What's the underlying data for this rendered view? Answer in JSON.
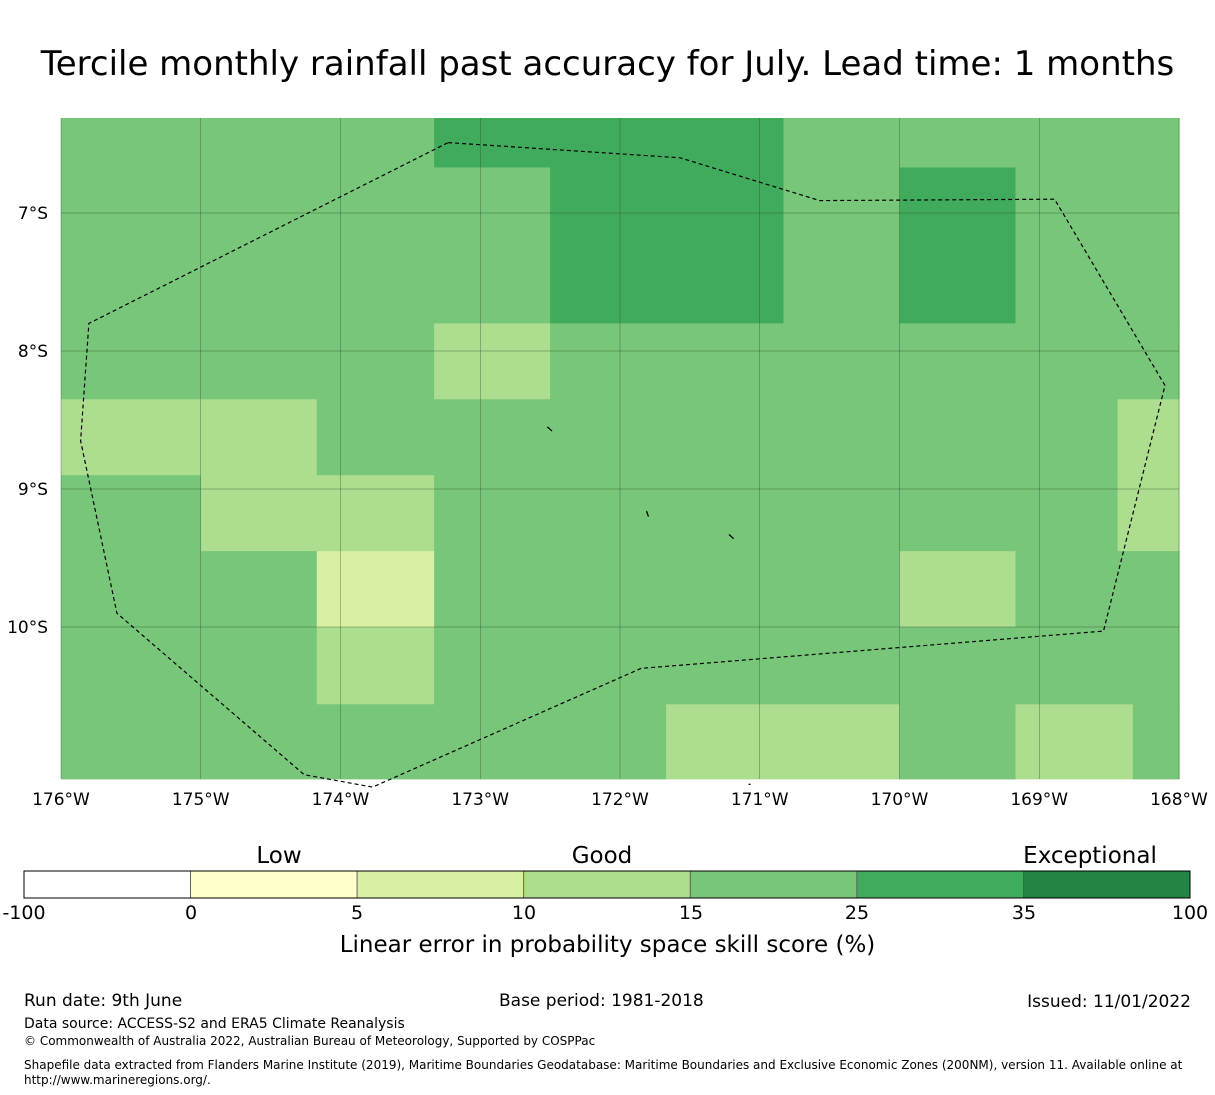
{
  "title": "Tercile monthly rainfall past accuracy for July. Lead time: 1 months",
  "map": {
    "lon_range": [
      -176,
      -168
    ],
    "lat_range": [
      -11.2,
      -6.3
    ],
    "x_ticks": [
      "176°W",
      "175°W",
      "174°W",
      "173°W",
      "172°W",
      "171°W",
      "170°W",
      "169°W",
      "168°W"
    ],
    "y_ticks": [
      "7°S",
      "8°S",
      "9°S",
      "10°S"
    ],
    "cells": [
      {
        "lon": [
          -176.0,
          -173.33
        ],
        "lat": [
          -8.35,
          -6.3
        ],
        "cls": "15-25"
      },
      {
        "lon": [
          -173.33,
          -172.5
        ],
        "lat": [
          -6.67,
          -6.3
        ],
        "cls": "25-35"
      },
      {
        "lon": [
          -173.33,
          -172.5
        ],
        "lat": [
          -7.8,
          -6.67
        ],
        "cls": "15-25"
      },
      {
        "lon": [
          -173.33,
          -172.5
        ],
        "lat": [
          -8.35,
          -7.8
        ],
        "cls": "10-15"
      },
      {
        "lon": [
          -172.5,
          -170.83
        ],
        "lat": [
          -7.8,
          -6.3
        ],
        "cls": "25-35"
      },
      {
        "lon": [
          -170.83,
          -170.0
        ],
        "lat": [
          -7.8,
          -6.3
        ],
        "cls": "15-25"
      },
      {
        "lon": [
          -170.0,
          -169.17
        ],
        "lat": [
          -6.67,
          -6.3
        ],
        "cls": "15-25"
      },
      {
        "lon": [
          -170.0,
          -169.17
        ],
        "lat": [
          -7.8,
          -6.67
        ],
        "cls": "25-35"
      },
      {
        "lon": [
          -169.17,
          -168.0
        ],
        "lat": [
          -7.8,
          -6.3
        ],
        "cls": "15-25"
      },
      {
        "lon": [
          -172.5,
          -168.0
        ],
        "lat": [
          -8.35,
          -7.8
        ],
        "cls": "15-25"
      },
      {
        "lon": [
          -176.0,
          -175.0
        ],
        "lat": [
          -8.9,
          -8.35
        ],
        "cls": "10-15"
      },
      {
        "lon": [
          -175.0,
          -174.17
        ],
        "lat": [
          -8.9,
          -8.35
        ],
        "cls": "10-15"
      },
      {
        "lon": [
          -174.17,
          -168.44
        ],
        "lat": [
          -8.9,
          -8.35
        ],
        "cls": "15-25"
      },
      {
        "lon": [
          -168.44,
          -168.0
        ],
        "lat": [
          -8.9,
          -8.35
        ],
        "cls": "10-15"
      },
      {
        "lon": [
          -176.0,
          -175.0
        ],
        "lat": [
          -9.45,
          -8.9
        ],
        "cls": "15-25"
      },
      {
        "lon": [
          -175.0,
          -173.33
        ],
        "lat": [
          -9.45,
          -8.9
        ],
        "cls": "10-15"
      },
      {
        "lon": [
          -173.33,
          -168.44
        ],
        "lat": [
          -9.45,
          -8.9
        ],
        "cls": "15-25"
      },
      {
        "lon": [
          -168.44,
          -168.0
        ],
        "lat": [
          -9.45,
          -8.9
        ],
        "cls": "10-15"
      },
      {
        "lon": [
          -176.0,
          -174.17
        ],
        "lat": [
          -10.0,
          -9.45
        ],
        "cls": "15-25"
      },
      {
        "lon": [
          -174.17,
          -173.33
        ],
        "lat": [
          -10.0,
          -9.45
        ],
        "cls": "5-10"
      },
      {
        "lon": [
          -173.33,
          -170.0
        ],
        "lat": [
          -10.0,
          -9.45
        ],
        "cls": "15-25"
      },
      {
        "lon": [
          -170.0,
          -169.17
        ],
        "lat": [
          -10.0,
          -9.45
        ],
        "cls": "10-15"
      },
      {
        "lon": [
          -169.17,
          -168.0
        ],
        "lat": [
          -10.0,
          -9.45
        ],
        "cls": "15-25"
      },
      {
        "lon": [
          -176.0,
          -174.17
        ],
        "lat": [
          -10.56,
          -10.0
        ],
        "cls": "15-25"
      },
      {
        "lon": [
          -174.17,
          -173.33
        ],
        "lat": [
          -10.56,
          -10.0
        ],
        "cls": "10-15"
      },
      {
        "lon": [
          -173.33,
          -168.0
        ],
        "lat": [
          -10.56,
          -10.0
        ],
        "cls": "15-25"
      },
      {
        "lon": [
          -176.0,
          -171.67
        ],
        "lat": [
          -11.1,
          -10.56
        ],
        "cls": "15-25"
      },
      {
        "lon": [
          -171.67,
          -170.0
        ],
        "lat": [
          -11.1,
          -10.56
        ],
        "cls": "10-15"
      },
      {
        "lon": [
          -170.0,
          -169.17
        ],
        "lat": [
          -11.1,
          -10.56
        ],
        "cls": "15-25"
      },
      {
        "lon": [
          -169.17,
          -168.33
        ],
        "lat": [
          -11.1,
          -10.56
        ],
        "cls": "10-15"
      },
      {
        "lon": [
          -168.33,
          -168.0
        ],
        "lat": [
          -11.1,
          -10.56
        ],
        "cls": "15-25"
      }
    ],
    "eez_boundary": [
      [
        -173.23,
        -6.49
      ],
      [
        -171.57,
        -6.6
      ],
      [
        -170.57,
        -6.91
      ],
      [
        -168.89,
        -6.9
      ],
      [
        -168.1,
        -8.25
      ],
      [
        -168.54,
        -10.03
      ],
      [
        -171.85,
        -10.3
      ],
      [
        -173.77,
        -11.16
      ],
      [
        -174.26,
        -11.07
      ],
      [
        -175.6,
        -9.9
      ],
      [
        -175.86,
        -8.65
      ],
      [
        -175.8,
        -7.8
      ]
    ],
    "islands": [
      [
        [
          -172.52,
          -8.55
        ],
        [
          -172.49,
          -8.58
        ]
      ],
      [
        [
          -171.81,
          -9.16
        ],
        [
          -171.8,
          -9.2
        ]
      ],
      [
        [
          -171.22,
          -9.33
        ],
        [
          -171.19,
          -9.36
        ]
      ],
      [
        [
          -171.08,
          -11.14
        ],
        [
          -171.07,
          -11.14
        ]
      ]
    ]
  },
  "colorbar": {
    "categories": [
      "Low",
      "Good",
      "Exceptional"
    ],
    "ticks": [
      "-100",
      "0",
      "5",
      "10",
      "15",
      "25",
      "35",
      "100"
    ],
    "classes": [
      {
        "range": "-100-0",
        "color": "#ffffff"
      },
      {
        "range": "0-5",
        "color": "#ffffcc"
      },
      {
        "range": "5-10",
        "color": "#d9f0a3"
      },
      {
        "range": "10-15",
        "color": "#addd8e"
      },
      {
        "range": "15-25",
        "color": "#78c679"
      },
      {
        "range": "25-35",
        "color": "#41ab5d"
      },
      {
        "range": "35-100",
        "color": "#238443"
      }
    ],
    "label": "Linear error in probability space skill score (%)"
  },
  "footer": {
    "run_date": "Run date: 9th June",
    "base_period": "Base period: 1981-2018",
    "issued": "Issued: 11/01/2022",
    "data_source": "Data source: ACCESS-S2 and ERA5 Climate Reanalysis",
    "copyright": "© Commonwealth of Australia 2022, Australian Bureau of Meteorology, Supported by COSPPac",
    "shapefile_line1": "Shapefile data extracted from Flanders Marine Institute (2019), Maritime Boundaries Geodatabase: Maritime Boundaries and Exclusive Economic Zones (200NM), version 11. Available online at",
    "shapefile_line2": "http://www.marineregions.org/."
  }
}
